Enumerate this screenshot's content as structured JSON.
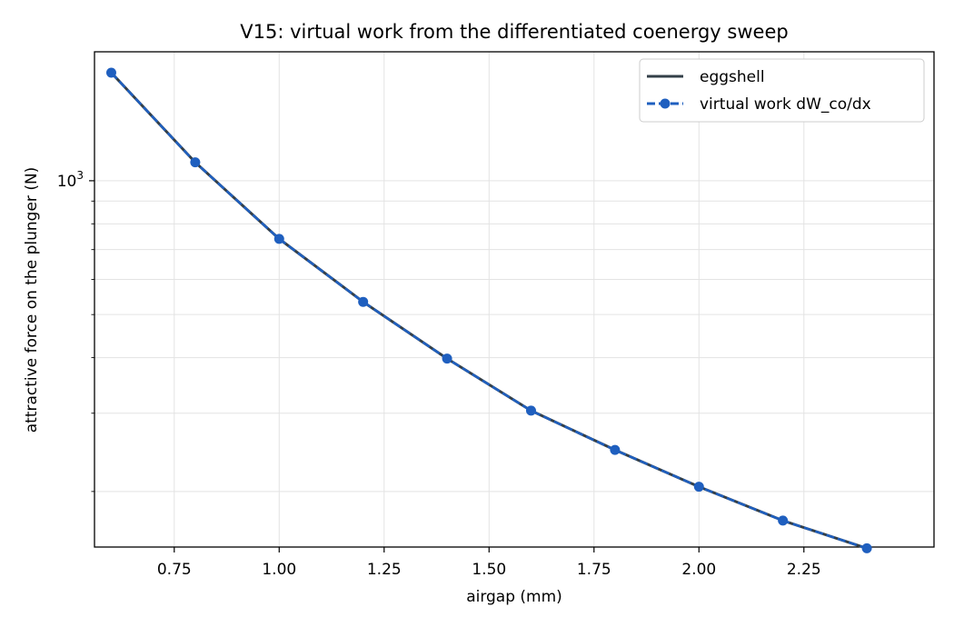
{
  "chart_data": {
    "type": "line",
    "title": "V15: virtual work from the differentiated coenergy sweep",
    "xlabel": "airgap (mm)",
    "ylabel": "attractive force on the plunger (N)",
    "xlim": [
      0.56,
      2.56
    ],
    "ylim": [
      150,
      1950
    ],
    "yscale": "log",
    "x_ticks": [
      0.75,
      1.0,
      1.25,
      1.5,
      1.75,
      2.0,
      2.25
    ],
    "x_tick_labels": [
      "0.75",
      "1.00",
      "1.25",
      "1.50",
      "1.75",
      "2.00",
      "2.25"
    ],
    "y_tick_label": "10^3",
    "grid": true,
    "legend_position": "top-right",
    "x": [
      0.6,
      0.8,
      1.0,
      1.2,
      1.4,
      1.6,
      1.8,
      2.0,
      2.2,
      2.4
    ],
    "series": [
      {
        "name": "eggshell",
        "style": "solid",
        "color": "#333f48",
        "values": [
          1750,
          1100,
          740,
          534,
          398,
          304,
          248,
          205,
          172,
          149
        ]
      },
      {
        "name": "virtual work  dW_co/dx",
        "style": "dashed-markers",
        "color": "#1f5fbf",
        "values": [
          1750,
          1100,
          740,
          534,
          398,
          304,
          248,
          205,
          172,
          149
        ]
      }
    ]
  }
}
